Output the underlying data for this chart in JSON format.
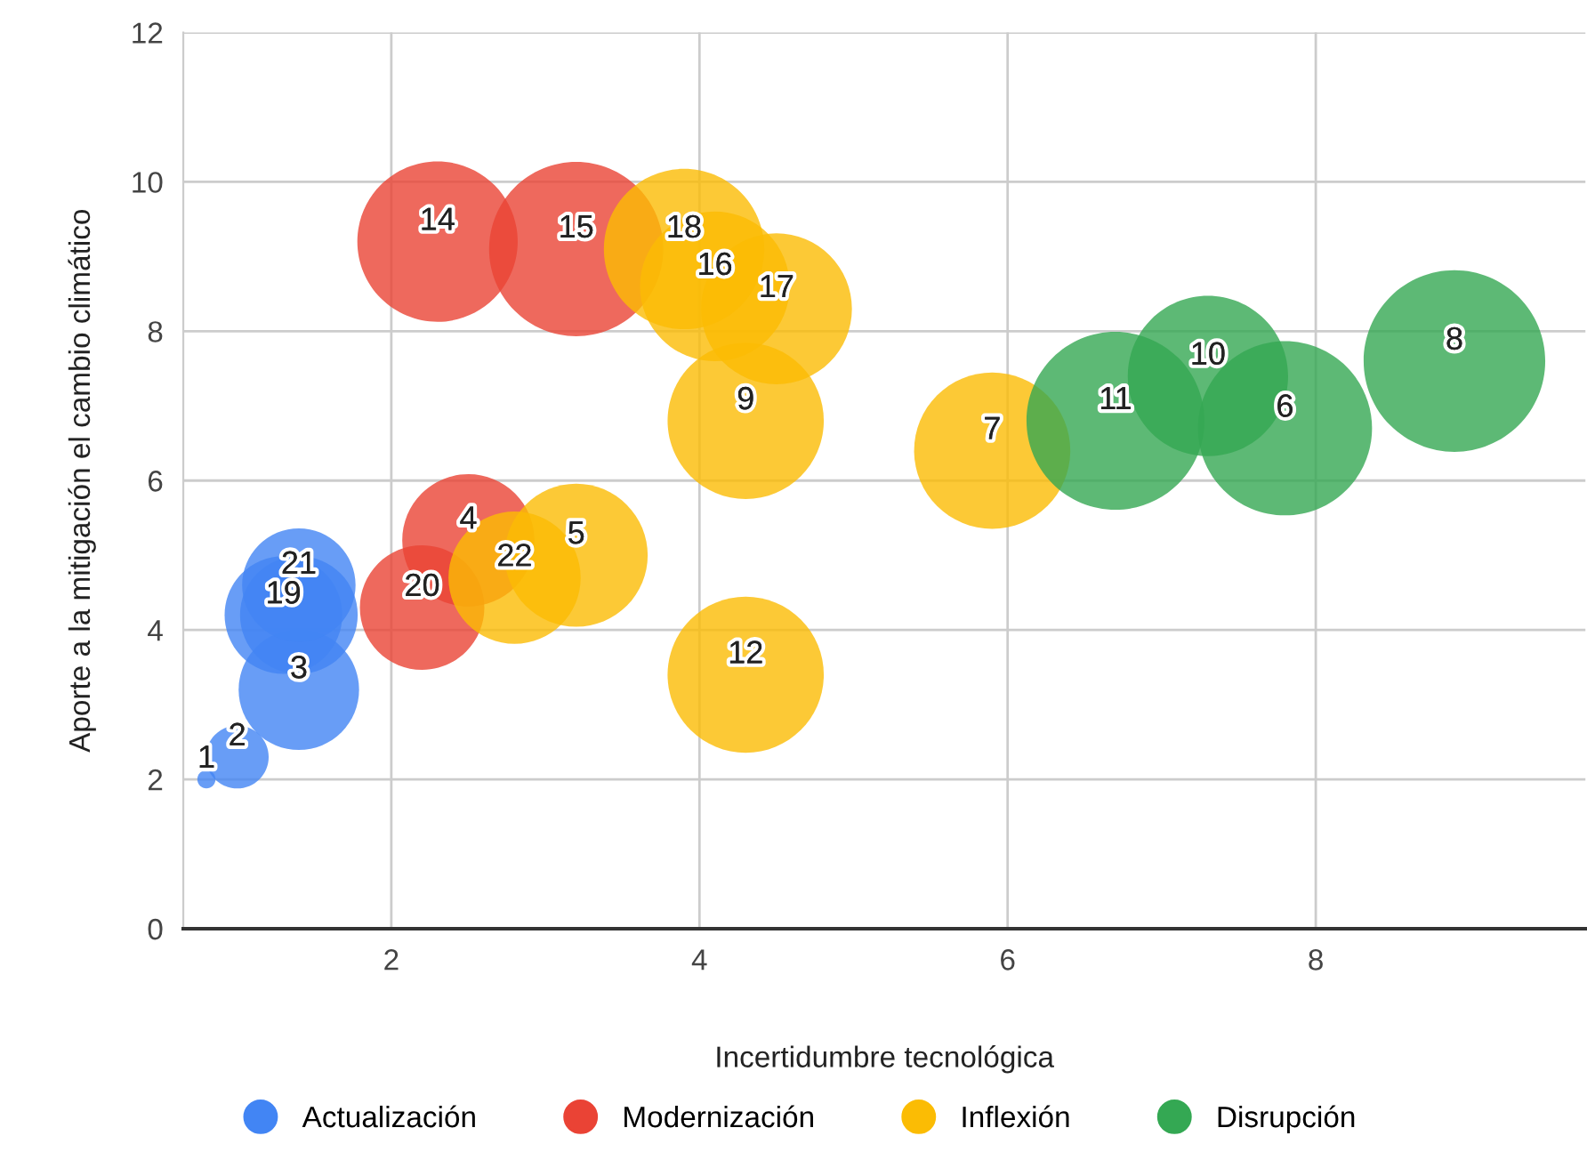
{
  "chart_data": {
    "type": "bubble",
    "xlabel": "Incertidumbre tecnológica",
    "ylabel": "Aporte a la mitigación el cambio climático",
    "xlim": [
      0.65,
      9.75
    ],
    "xticks": [
      2,
      4,
      6,
      8
    ],
    "ylim": [
      0,
      12
    ],
    "yticks": [
      0,
      2,
      4,
      6,
      8,
      10,
      12
    ],
    "grid": true,
    "legend": "bottom",
    "marker": "circle",
    "series": [
      {
        "name": "Actualización",
        "color": "#4285f4",
        "x": [
          0.8,
          1.0,
          1.4,
          1.4,
          1.3,
          1.4
        ],
        "values": [
          2,
          2.3,
          3.2,
          4.2,
          4.2,
          4.6
        ],
        "sizes": [
          0.01,
          0.12,
          0.44,
          0.42,
          0.42,
          0.39
        ]
      },
      {
        "name": "Modernización",
        "color": "#ea4335",
        "x": [
          2.5,
          2.3,
          3.2,
          2.2
        ],
        "values": [
          5.2,
          9.2,
          9.1,
          4.3
        ],
        "sizes": [
          0.53,
          0.78,
          0.92,
          0.47
        ]
      },
      {
        "name": "Inflexión",
        "color": "#fbbc04",
        "x": [
          3.2,
          5.9,
          4.3,
          4.3,
          4.1,
          4.5,
          3.9,
          2.8
        ],
        "values": [
          5.0,
          6.4,
          6.8,
          3.4,
          8.6,
          8.3,
          9.1,
          4.7
        ],
        "sizes": [
          0.62,
          0.74,
          0.74,
          0.74,
          0.68,
          0.69,
          0.78,
          0.53
        ]
      },
      {
        "name": "Disrupción",
        "color": "#34a853",
        "x": [
          7.8,
          8.9,
          7.3,
          6.7
        ],
        "values": [
          6.7,
          7.6,
          7.4,
          6.8
        ],
        "sizes": [
          0.92,
          1,
          0.78,
          0.96
        ]
      }
    ],
    "annotations": [
      {
        "text": "1",
        "x": 0.8,
        "y": 2
      },
      {
        "text": "2",
        "x": 1.0,
        "y": 2.3
      },
      {
        "text": "3",
        "x": 1.4,
        "y": 3.2
      },
      {
        "text": "19",
        "x": 1.3,
        "y": 4.2
      },
      {
        "text": "21",
        "x": 1.4,
        "y": 4.6
      },
      {
        "text": "4",
        "x": 2.5,
        "y": 5.2
      },
      {
        "text": "14",
        "x": 2.3,
        "y": 9.2
      },
      {
        "text": "15",
        "x": 3.2,
        "y": 9.1
      },
      {
        "text": "20",
        "x": 2.2,
        "y": 4.3
      },
      {
        "text": "5",
        "x": 3.2,
        "y": 5.0
      },
      {
        "text": "7",
        "x": 5.9,
        "y": 6.4
      },
      {
        "text": "9",
        "x": 4.3,
        "y": 6.8
      },
      {
        "text": "12",
        "x": 4.3,
        "y": 3.4
      },
      {
        "text": "16",
        "x": 4.1,
        "y": 8.6
      },
      {
        "text": "17",
        "x": 4.5,
        "y": 8.3
      },
      {
        "text": "18",
        "x": 3.9,
        "y": 9.1
      },
      {
        "text": "22",
        "x": 2.8,
        "y": 4.7
      },
      {
        "text": "6",
        "x": 7.8,
        "y": 6.7
      },
      {
        "text": "8",
        "x": 8.9,
        "y": 7.6
      },
      {
        "text": "10",
        "x": 7.3,
        "y": 7.4
      },
      {
        "text": "11",
        "x": 6.7,
        "y": 6.8
      }
    ]
  }
}
